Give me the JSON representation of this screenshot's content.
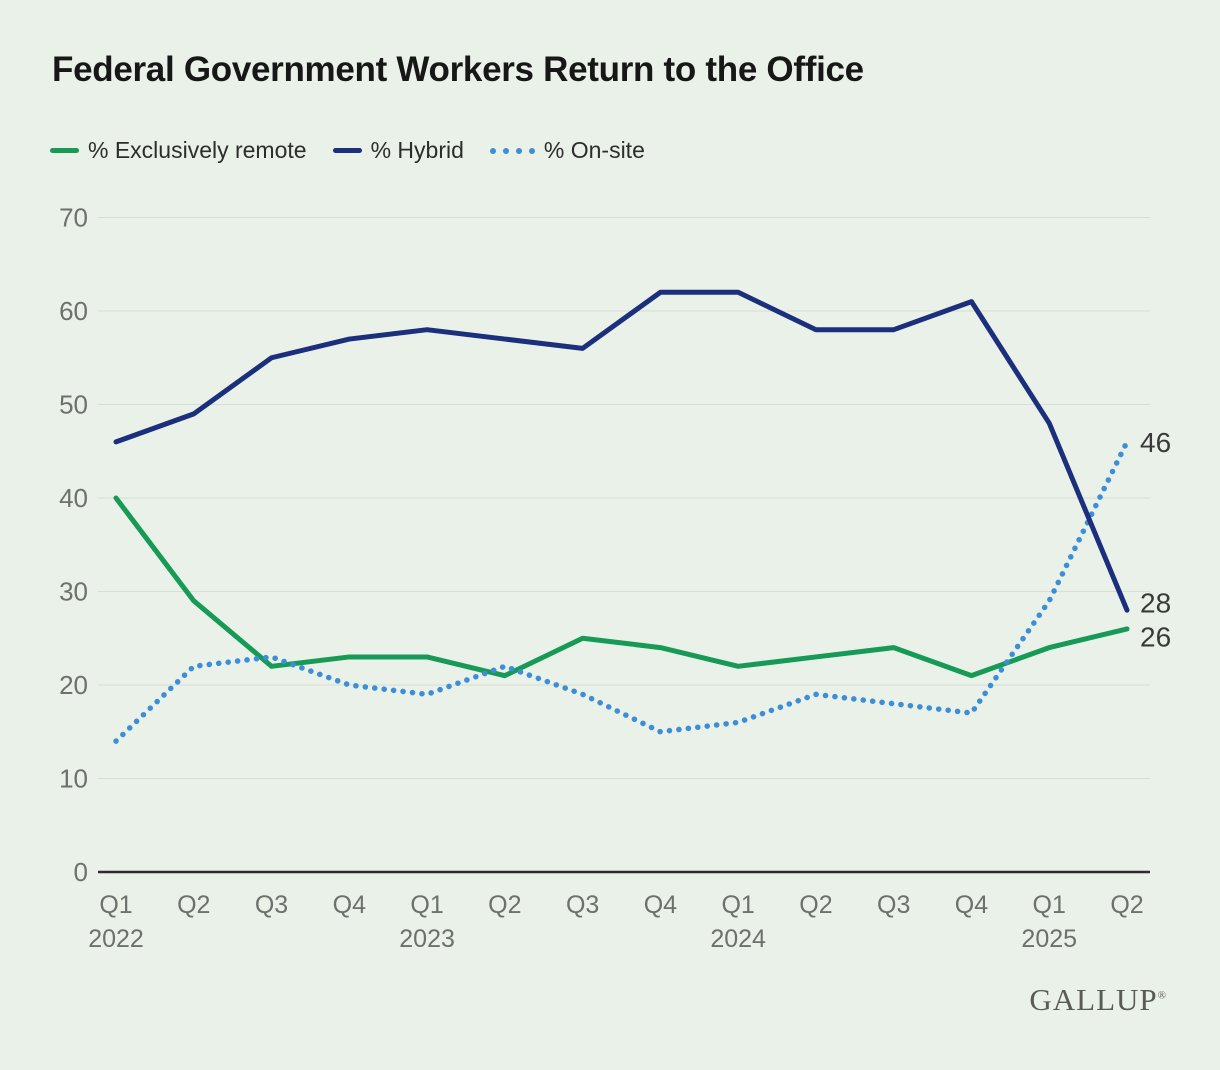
{
  "page": {
    "title": "Federal Government Workers Return to the Office",
    "brand": "GALLUP",
    "brand_reg": "®"
  },
  "legend": [
    {
      "label": "% Exclusively remote",
      "color": "#169a56",
      "style": "solid"
    },
    {
      "label": "% Hybrid",
      "color": "#1c2f7c",
      "style": "solid"
    },
    {
      "label": "% On-site",
      "color": "#3c8ed7",
      "style": "dotted"
    }
  ],
  "chart_data": {
    "type": "line",
    "title": "Federal Government Workers Return to the Office",
    "categories": [
      "Q1 2022",
      "Q2 2022",
      "Q3 2022",
      "Q4 2022",
      "Q1 2023",
      "Q2 2023",
      "Q3 2023",
      "Q4 2023",
      "Q1 2024",
      "Q2 2024",
      "Q3 2024",
      "Q4 2024",
      "Q1 2025",
      "Q2 2025"
    ],
    "x_tick_labels": [
      "Q1",
      "Q2",
      "Q3",
      "Q4",
      "Q1",
      "Q2",
      "Q3",
      "Q4",
      "Q1",
      "Q2",
      "Q3",
      "Q4",
      "Q1",
      "Q2"
    ],
    "year_labels": [
      {
        "text": "2022",
        "index": 0
      },
      {
        "text": "2023",
        "index": 4
      },
      {
        "text": "2024",
        "index": 8
      },
      {
        "text": "2025",
        "index": 12
      }
    ],
    "series": [
      {
        "id": "remote",
        "name": "% Exclusively remote",
        "color": "#169a56",
        "style": "solid",
        "values": [
          40,
          29,
          22,
          23,
          23,
          21,
          25,
          24,
          22,
          23,
          24,
          21,
          24,
          26
        ]
      },
      {
        "id": "hybrid",
        "name": "% Hybrid",
        "color": "#1c2f7c",
        "style": "solid",
        "values": [
          46,
          49,
          55,
          57,
          58,
          57,
          56,
          62,
          62,
          58,
          58,
          61,
          48,
          28
        ]
      },
      {
        "id": "onsite",
        "name": "% On-site",
        "color": "#3c8ed7",
        "style": "dotted",
        "values": [
          14,
          22,
          23,
          20,
          19,
          22,
          19,
          15,
          16,
          19,
          18,
          17,
          29,
          46
        ]
      }
    ],
    "end_labels": [
      {
        "text": "46",
        "series": "onsite",
        "value": 46
      },
      {
        "text": "28",
        "series": "hybrid",
        "value": 28
      },
      {
        "text": "26",
        "series": "remote",
        "value": 26
      }
    ],
    "y_ticks": [
      0,
      10,
      20,
      30,
      40,
      50,
      60,
      70
    ],
    "ylim": [
      0,
      70
    ],
    "grid": true,
    "legend_position": "top",
    "xlabel": "",
    "ylabel": ""
  }
}
